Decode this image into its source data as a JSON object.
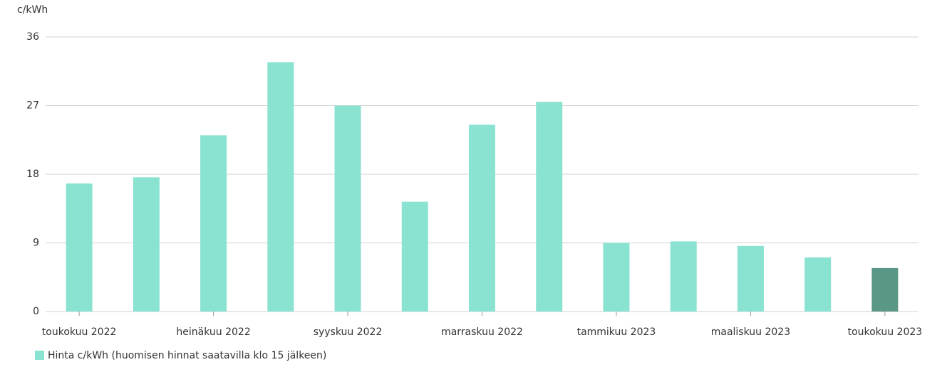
{
  "chart_data": {
    "type": "bar",
    "y_label": "c/kWh",
    "categories": [
      "toukokuu 2022",
      null,
      "heinäkuu 2022",
      null,
      "syyskuu 2022",
      null,
      "marraskuu 2022",
      null,
      "tammikuu 2023",
      null,
      "maaliskuu 2023",
      null,
      "toukokuu 2023"
    ],
    "series": [
      {
        "name": "Hinta c/kWh (huomisen hinnat saatavilla klo 15 jälkeen)",
        "color": "#8ae3d1",
        "values": [
          16.8,
          17.6,
          23.1,
          32.7,
          27.0,
          14.4,
          24.5,
          27.5,
          9.0,
          9.2,
          8.6,
          7.1,
          5.7
        ],
        "colors": [
          "#8ae3d1",
          "#8ae3d1",
          "#8ae3d1",
          "#8ae3d1",
          "#8ae3d1",
          "#8ae3d1",
          "#8ae3d1",
          "#8ae3d1",
          "#8ae3d1",
          "#8ae3d1",
          "#8ae3d1",
          "#8ae3d1",
          "#5a9787"
        ]
      }
    ],
    "ylim": [
      0,
      36
    ],
    "yticks": [
      0,
      9,
      18,
      27,
      36
    ],
    "grid": true
  }
}
